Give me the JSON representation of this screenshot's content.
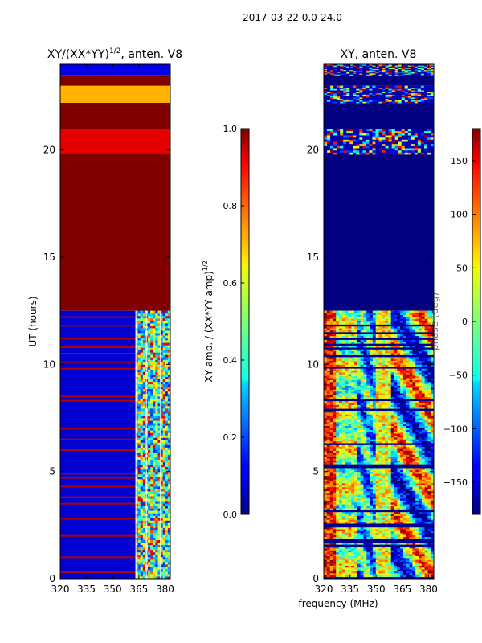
{
  "figure_title": "2017-03-22 0.0-24.0",
  "shared_xlabel": "frequency (MHz)",
  "chart_data": [
    {
      "type": "heatmap",
      "title": "XY/(XX*YY)",
      "title_power": "1/2",
      "title_suffix": ", anten. V8",
      "xlabel": "",
      "ylabel": "UT (hours)",
      "xlim": [
        320,
        383
      ],
      "ylim": [
        0,
        24
      ],
      "xticks": [
        320,
        335,
        350,
        365,
        380
      ],
      "yticks": [
        0,
        5,
        10,
        15,
        20
      ],
      "colorbar": {
        "label": "XY amp. / (XX*YY amp)",
        "label_power": "1/2",
        "min": 0.0,
        "max": 1.0,
        "ticks": [
          "0.0",
          "0.2",
          "0.4",
          "0.6",
          "0.8",
          "1.0"
        ],
        "tick_values": [
          0.0,
          0.2,
          0.4,
          0.6,
          0.8,
          1.0
        ]
      },
      "bands": [
        {
          "from": 0.0,
          "to": 12.5,
          "value": 0.08,
          "desc": "mostly low amplitude with high-value lines"
        },
        {
          "from": 12.5,
          "to": 19.8,
          "value": 1.0
        },
        {
          "from": 19.8,
          "to": 21.0,
          "value": 0.9
        },
        {
          "from": 21.0,
          "to": 22.2,
          "value": 1.0
        },
        {
          "from": 22.2,
          "to": 23.0,
          "value": 0.7
        },
        {
          "from": 23.0,
          "to": 23.5,
          "value": 1.0
        },
        {
          "from": 23.5,
          "to": 24.0,
          "value": 0.1
        }
      ],
      "high_lines_hours": [
        0.3,
        1.0,
        2.0,
        2.8,
        3.5,
        3.8,
        4.3,
        4.7,
        4.9,
        6.0,
        6.5,
        7.0,
        8.3,
        8.5,
        9.8,
        10.1,
        10.5,
        10.8,
        11.2,
        11.8,
        12.2
      ],
      "active_freq_range": [
        363,
        383
      ],
      "active_hours": [
        0.0,
        12.5
      ]
    },
    {
      "type": "heatmap",
      "title": "XY, anten. V8",
      "xlabel": "",
      "ylabel": "",
      "xlim": [
        320,
        383
      ],
      "ylim": [
        0,
        24
      ],
      "xticks": [
        320,
        335,
        350,
        365,
        380
      ],
      "yticks": [
        0,
        5,
        10,
        15,
        20
      ],
      "colorbar": {
        "label": "phase (deg)",
        "min": -180,
        "max": 180,
        "ticks": [
          "150",
          "100",
          "50",
          "0",
          "−50",
          "−100",
          "−150"
        ],
        "tick_values": [
          150,
          100,
          50,
          0,
          -50,
          -100,
          -150
        ]
      },
      "bands": [
        {
          "from": 0.0,
          "to": 12.5,
          "value": 0,
          "desc": "varied phase structure"
        },
        {
          "from": 12.5,
          "to": 19.8,
          "value": -180
        },
        {
          "from": 19.8,
          "to": 21.0,
          "value": 0,
          "desc": "speckled noise"
        },
        {
          "from": 21.0,
          "to": 22.2,
          "value": -180
        },
        {
          "from": 22.2,
          "to": 23.0,
          "value": 0,
          "desc": "speckled noise"
        },
        {
          "from": 23.0,
          "to": 23.5,
          "value": -180
        },
        {
          "from": 23.5,
          "to": 24.0,
          "value": 0,
          "desc": "speckled noise"
        }
      ]
    }
  ]
}
